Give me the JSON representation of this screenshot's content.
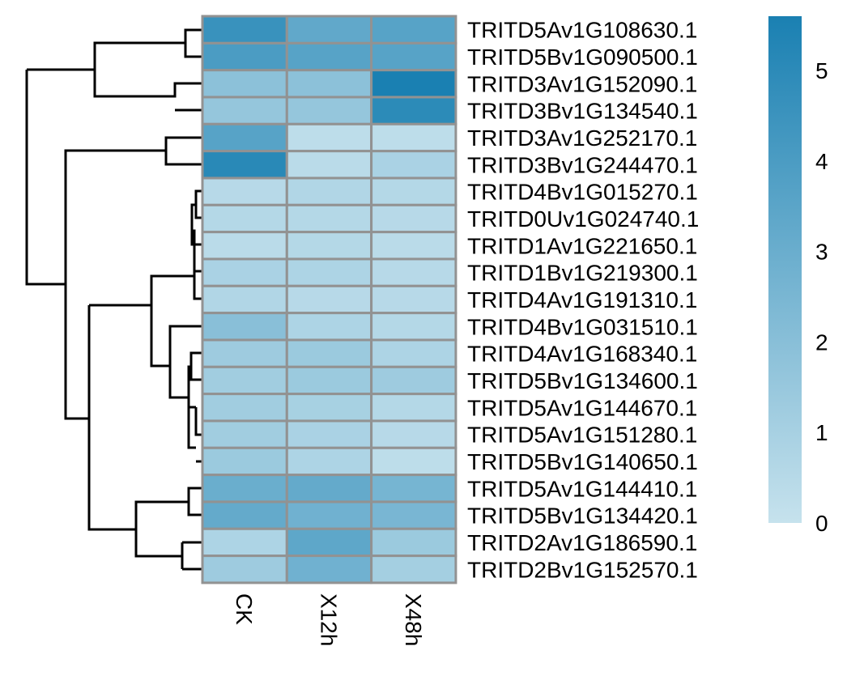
{
  "chart_data": {
    "type": "heatmap",
    "title": "",
    "xlabel": "",
    "ylabel": "",
    "columns": [
      "CK",
      "X12h",
      "X48h"
    ],
    "rows": [
      "TRITD5Av1G108630.1",
      "TRITD5Bv1G090500.1",
      "TRITD3Av1G152090.1",
      "TRITD3Bv1G134540.1",
      "TRITD3Av1G252170.1",
      "TRITD3Bv1G244470.1",
      "TRITD4Bv1G015270.1",
      "TRITD0Uv1G024740.1",
      "TRITD1Av1G221650.1",
      "TRITD1Bv1G219300.1",
      "TRITD4Av1G191310.1",
      "TRITD4Bv1G031510.1",
      "TRITD4Av1G168340.1",
      "TRITD5Bv1G134600.1",
      "TRITD5Av1G144670.1",
      "TRITD5Av1G151280.1",
      "TRITD5Bv1G140650.1",
      "TRITD5Av1G144410.1",
      "TRITD5Bv1G134420.1",
      "TRITD2Av1G186590.1",
      "TRITD2Bv1G152570.1"
    ],
    "values": [
      [
        4.6,
        3.3,
        3.6
      ],
      [
        4.0,
        3.6,
        3.6
      ],
      [
        1.9,
        1.9,
        5.6
      ],
      [
        1.6,
        1.6,
        5.0
      ],
      [
        3.6,
        0.3,
        0.3
      ],
      [
        5.1,
        0.4,
        0.9
      ],
      [
        0.5,
        0.7,
        0.6
      ],
      [
        0.6,
        0.6,
        0.5
      ],
      [
        0.4,
        0.6,
        0.4
      ],
      [
        0.9,
        0.8,
        0.5
      ],
      [
        0.7,
        0.5,
        0.5
      ],
      [
        2.0,
        0.8,
        0.6
      ],
      [
        1.3,
        1.4,
        0.8
      ],
      [
        1.2,
        1.4,
        1.3
      ],
      [
        1.2,
        1.0,
        0.6
      ],
      [
        1.2,
        0.9,
        0.5
      ],
      [
        1.4,
        0.8,
        0.3
      ],
      [
        3.0,
        3.2,
        2.6
      ],
      [
        3.2,
        2.8,
        2.5
      ],
      [
        0.8,
        3.4,
        1.4
      ],
      [
        1.3,
        2.8,
        1.1
      ]
    ],
    "color_scale": {
      "min": 0,
      "max": 5.6,
      "low_color": "#c6e2ed",
      "high_color": "#1a80b2",
      "ticks": [
        0,
        1,
        2,
        3,
        4,
        5
      ]
    },
    "cell_border_color": "#929292",
    "legend_position": "right",
    "row_dendrogram": true
  }
}
